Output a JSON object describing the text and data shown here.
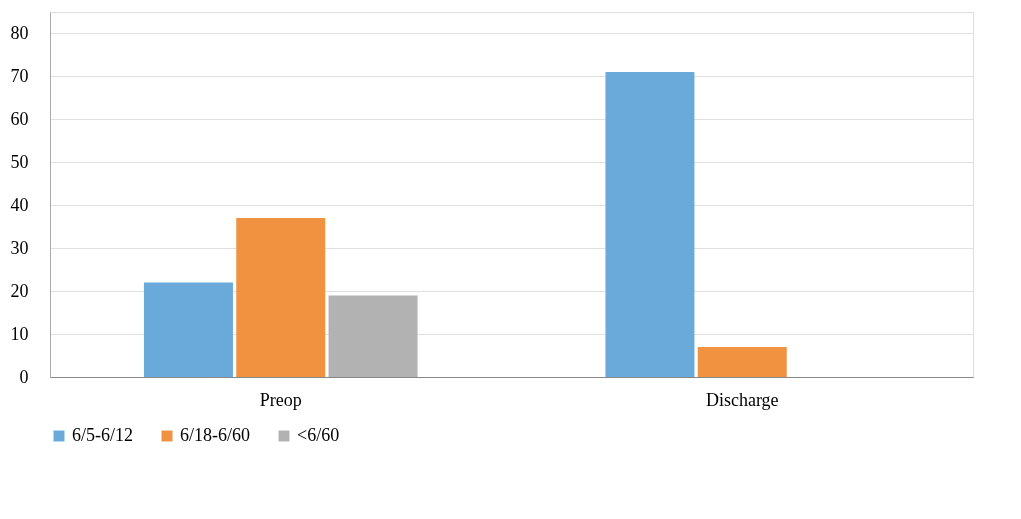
{
  "chart_data": {
    "type": "bar",
    "categories": [
      "Preop",
      "Discharge"
    ],
    "series": [
      {
        "name": "6/5-6/12",
        "color": "#6aaadb",
        "values": [
          22,
          71
        ]
      },
      {
        "name": "6/18-6/60",
        "color": "#f19240",
        "values": [
          37,
          7
        ]
      },
      {
        "name": "<6/60",
        "color": "#b2b2b2",
        "values": [
          19,
          null
        ]
      }
    ],
    "ylim": [
      0,
      85
    ],
    "yticks": [
      0,
      10,
      20,
      30,
      40,
      50,
      60,
      70,
      80
    ],
    "grid": "y",
    "legend": "bottom"
  }
}
